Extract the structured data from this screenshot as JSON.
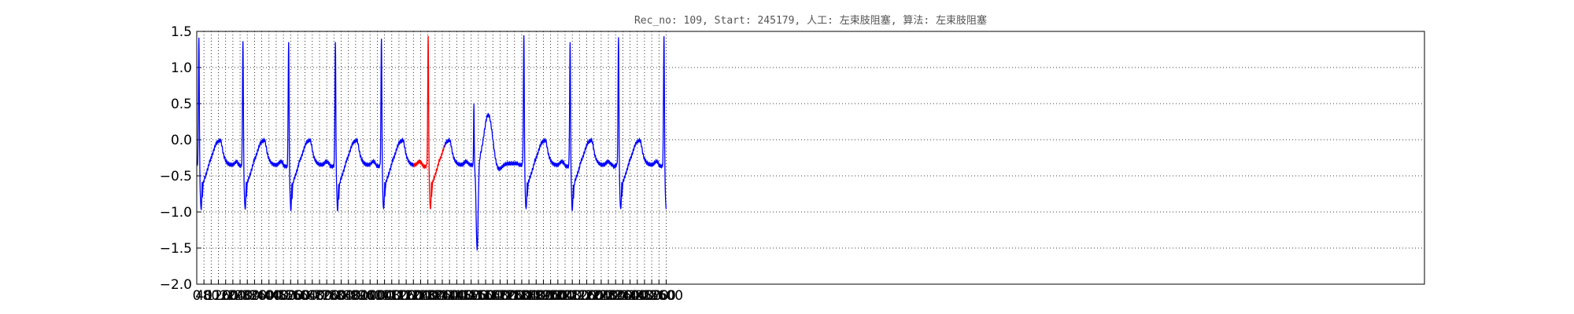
{
  "chart_data": {
    "type": "line",
    "title": "Rec_no: 109, Start: 245179, 人工: 左束肢阻塞, 算法: 左束肢阻塞",
    "xlabel": "",
    "ylabel": "",
    "xlim": [
      0,
      6800
    ],
    "ylim": [
      -2.0,
      1.5
    ],
    "grid": true,
    "x_tick_values": [
      0,
      40,
      80,
      120,
      160,
      200,
      240,
      280,
      320,
      360,
      400,
      440,
      480,
      520,
      560,
      600,
      640,
      680,
      720,
      760,
      800,
      840,
      880,
      920,
      960,
      1000,
      1040,
      1080,
      1120,
      1160,
      1200,
      1240,
      1280,
      1320,
      1360,
      1400,
      1440,
      1480,
      1520,
      1560,
      1600,
      1640,
      1680,
      1720,
      1760,
      1800,
      1840,
      1880,
      1920,
      1960,
      2000,
      2040,
      2080,
      2120,
      2160,
      2200,
      2240,
      2280,
      2320,
      2360,
      2400,
      2440,
      2480,
      2520,
      2560,
      2600
    ],
    "y_tick_labels": [
      "1.5",
      "1.0",
      "0.5",
      "0.0",
      "−0.5",
      "−1.0",
      "−1.5",
      "−2.0"
    ],
    "y_tick_values": [
      1.5,
      1.0,
      0.5,
      0.0,
      -0.5,
      -1.0,
      -1.5,
      -2.0
    ],
    "normal_color": "#0000ff",
    "highlight_color": "#ff0000",
    "highlight_range": [
      1202,
      1372
    ],
    "beats": [
      {
        "r": 12,
        "amp": 1.45,
        "type": "n"
      },
      {
        "r": 256,
        "amp": 1.42,
        "type": "n"
      },
      {
        "r": 509,
        "amp": 1.38,
        "type": "n"
      },
      {
        "r": 768,
        "amp": 1.37,
        "type": "n"
      },
      {
        "r": 1023,
        "amp": 1.42,
        "type": "n"
      },
      {
        "r": 1282,
        "amp": 1.47,
        "type": "n"
      },
      {
        "r": 1535,
        "amp": 0.52,
        "type": "pvc"
      },
      {
        "r": 1812,
        "amp": 1.47,
        "type": "n"
      },
      {
        "r": 2068,
        "amp": 1.35,
        "type": "n"
      },
      {
        "r": 2336,
        "amp": 1.45,
        "type": "n"
      },
      {
        "r": 2588,
        "amp": 1.47,
        "type": "n"
      }
    ],
    "signal_end": 2600
  }
}
